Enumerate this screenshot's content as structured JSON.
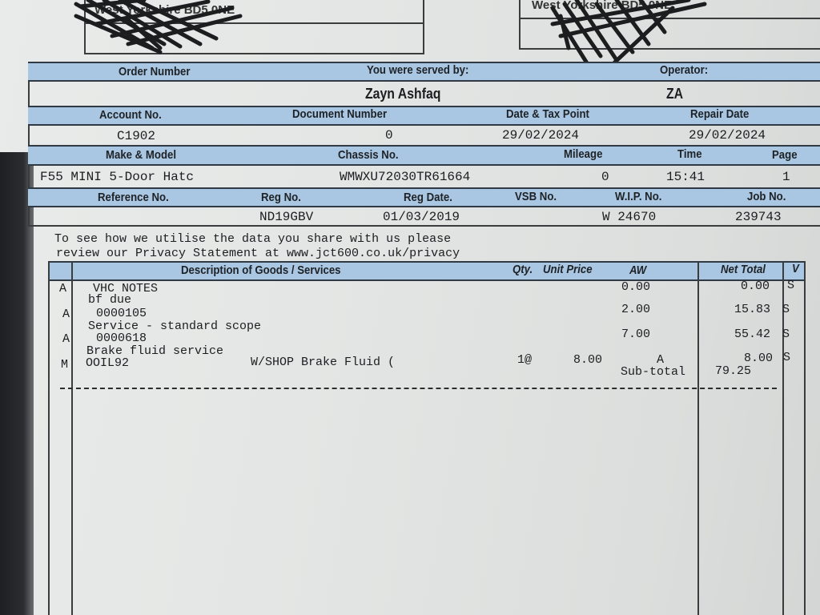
{
  "address_blocks": {
    "left": "West Yorkshire BD5 0NE",
    "right": "West Yorkshire BD5 0NE"
  },
  "header": {
    "order_number_label": "Order Number",
    "served_by_label": "You were served by:",
    "served_by_value": "Zayn Ashfaq",
    "operator_label": "Operator:",
    "operator_value": "ZA",
    "account_no_label": "Account No.",
    "account_no_value": "C1902",
    "document_number_label": "Document Number",
    "document_number_value": "0",
    "date_tax_point_label": "Date & Tax Point",
    "date_tax_point_value": "29/02/2024",
    "repair_date_label": "Repair Date",
    "repair_date_value": "29/02/2024",
    "make_model_label": "Make & Model",
    "make_model_value": "F55 MINI 5-Door Hatc",
    "chassis_label": "Chassis No.",
    "chassis_value": "WMWXU72030TR61664",
    "mileage_label": "Mileage",
    "mileage_value": "0",
    "time_label": "Time",
    "time_value": "15:41",
    "page_label": "Page",
    "page_value": "1",
    "reference_label": "Reference No.",
    "reg_no_label": "Reg No.",
    "reg_no_value": "ND19GBV",
    "reg_date_label": "Reg Date.",
    "reg_date_value": "01/03/2019",
    "vsb_label": "VSB No.",
    "wip_label": "W.I.P. No.",
    "wip_value": "W 24670",
    "job_label": "Job No.",
    "job_value": "239743"
  },
  "privacy": {
    "line1": "To see how we utilise the data you share with us please",
    "line2": "review our Privacy Statement at www.jct600.co.uk/privacy"
  },
  "items_table": {
    "columns": {
      "description": "Description of Goods / Services",
      "qty": "Qty.",
      "unit_price": "Unit Price",
      "aw": "AW",
      "net_total": "Net Total",
      "v": "V"
    },
    "rows": [
      {
        "code": "A",
        "title": "",
        "ref": "VHC NOTES",
        "detail": "",
        "qty": "",
        "unit_price": "",
        "aw": "0.00",
        "net": "0.00",
        "v": "S"
      },
      {
        "code": "A",
        "title": "bf due",
        "ref": "0000105",
        "detail": "",
        "qty": "",
        "unit_price": "",
        "aw": "2.00",
        "net": "15.83",
        "v": "S"
      },
      {
        "code": "A",
        "title": "Service - standard scope",
        "ref": "0000618",
        "detail": "",
        "qty": "",
        "unit_price": "",
        "aw": "7.00",
        "net": "55.42",
        "v": "S"
      },
      {
        "code": "M",
        "title": "Brake fluid service",
        "ref": "OOIL92",
        "detail": "W/SHOP Brake Fluid (",
        "qty": "1@",
        "unit_price": "8.00",
        "aw": "A",
        "net": "8.00",
        "v": "S"
      }
    ],
    "subtotal_label": "Sub-total",
    "subtotal_value": "79.25"
  },
  "colors": {
    "header_band": "#a9c7e2",
    "ink": "#1b1d20"
  }
}
